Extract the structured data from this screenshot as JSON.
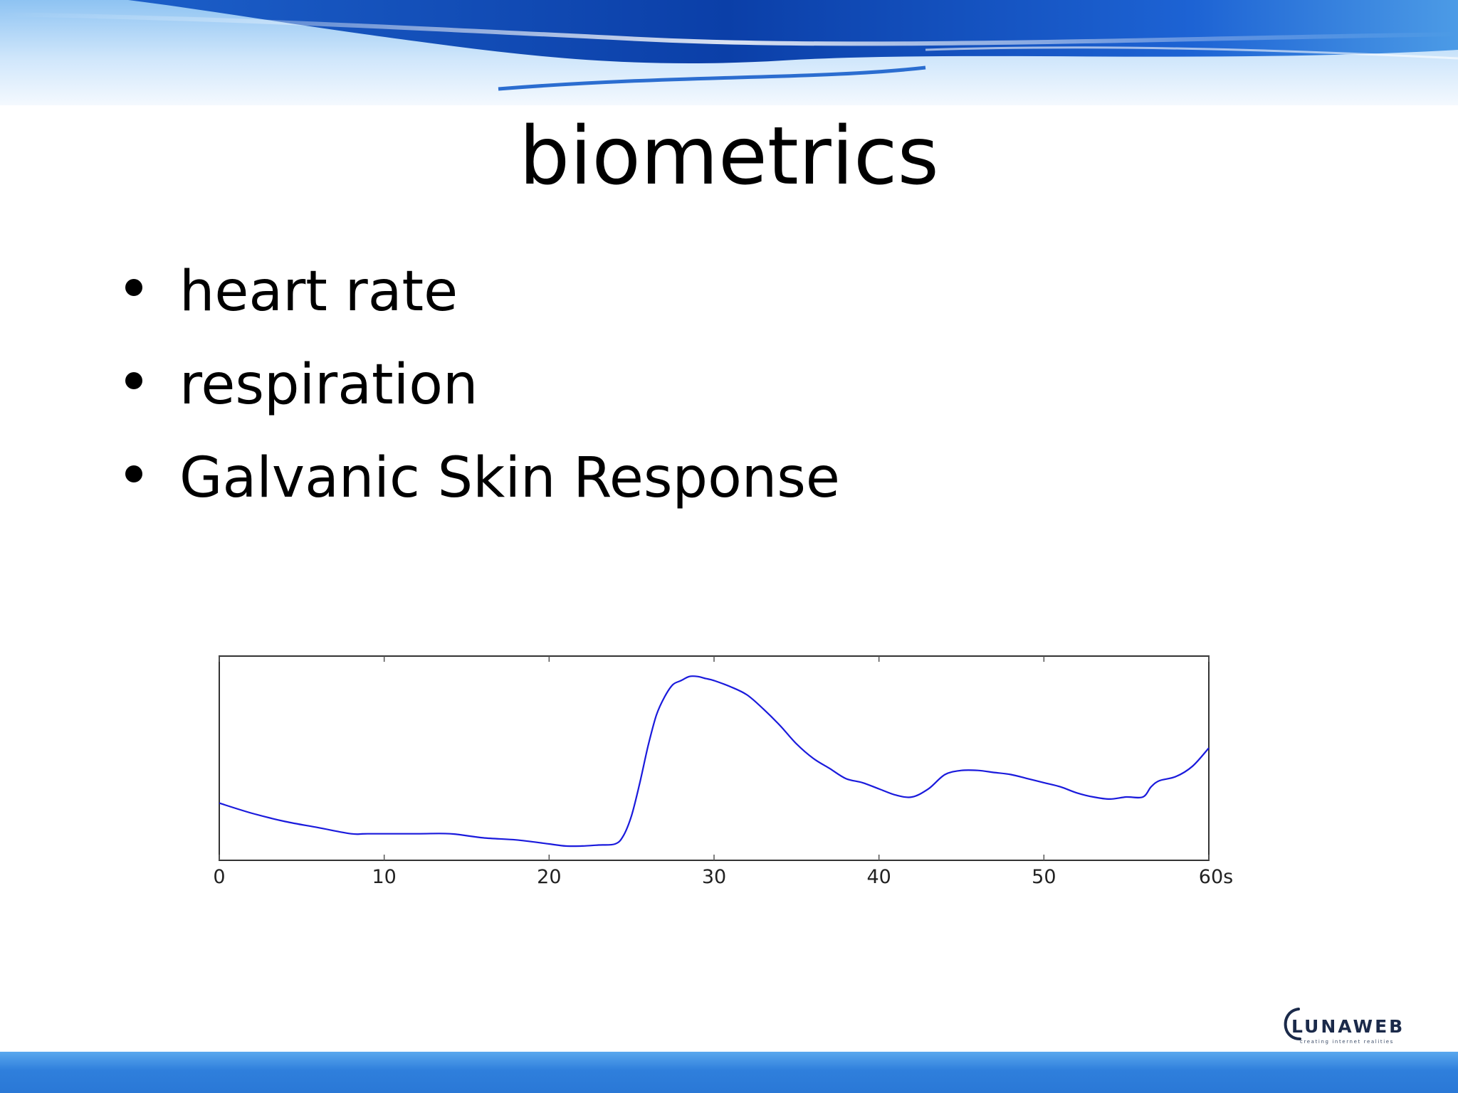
{
  "slide": {
    "title": "biometrics",
    "bullets": [
      "heart rate",
      "respiration",
      "Galvanic Skin Response"
    ],
    "logo": {
      "name": "LUNAWEB",
      "tagline": "creating internet realities"
    },
    "colors": {
      "banner_dark": "#0b3fa8",
      "banner_light": "#cfe6fb",
      "bottom_bar": "#2f7fdc",
      "line": "#1a1adc"
    }
  },
  "chart_data": {
    "type": "line",
    "title": "",
    "xlabel": "",
    "ylabel": "",
    "x_ticks": [
      "0",
      "10",
      "20",
      "30",
      "40",
      "50",
      "60s"
    ],
    "x_tick_values": [
      0,
      10,
      20,
      30,
      40,
      50,
      60
    ],
    "xlim": [
      0,
      60
    ],
    "ylim": [
      0,
      1
    ],
    "grid": false,
    "series": [
      {
        "x": [
          0,
          2,
          4,
          6,
          8,
          9,
          12,
          14,
          16,
          18,
          20,
          21,
          22,
          23,
          24,
          24.5,
          25,
          25.5,
          26,
          26.5,
          27,
          27.5,
          28,
          28.5,
          29,
          29.5,
          30,
          31,
          32,
          33,
          34,
          35,
          36,
          37,
          38,
          39,
          40,
          41,
          42,
          43,
          44,
          45,
          46,
          47,
          48,
          49,
          50,
          51,
          52,
          53,
          54,
          55,
          56,
          56.5,
          57,
          58,
          59,
          60
        ],
        "y": [
          0.28,
          0.23,
          0.19,
          0.16,
          0.13,
          0.13,
          0.13,
          0.13,
          0.11,
          0.1,
          0.08,
          0.07,
          0.07,
          0.075,
          0.08,
          0.12,
          0.22,
          0.38,
          0.56,
          0.71,
          0.8,
          0.86,
          0.88,
          0.9,
          0.9,
          0.89,
          0.88,
          0.85,
          0.81,
          0.74,
          0.66,
          0.57,
          0.5,
          0.45,
          0.4,
          0.38,
          0.35,
          0.32,
          0.31,
          0.35,
          0.42,
          0.44,
          0.44,
          0.43,
          0.42,
          0.4,
          0.38,
          0.36,
          0.33,
          0.31,
          0.3,
          0.31,
          0.31,
          0.36,
          0.39,
          0.41,
          0.46,
          0.55
        ]
      }
    ]
  }
}
